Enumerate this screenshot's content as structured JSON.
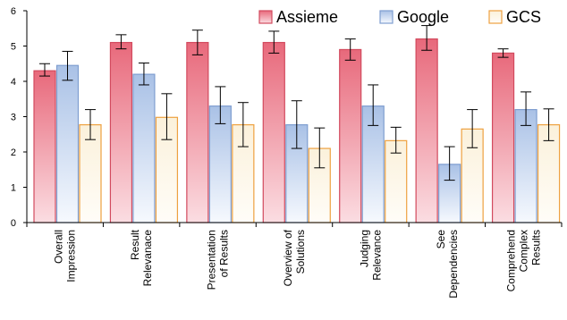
{
  "chart_data": {
    "type": "bar",
    "categories": [
      [
        "Overall",
        "Impression"
      ],
      [
        "Result",
        "Relevanace"
      ],
      [
        "Presentation",
        "of Results"
      ],
      [
        "Overview of",
        "Solutions"
      ],
      [
        "Judging",
        "Relevance"
      ],
      [
        "See",
        "Dependencies"
      ],
      [
        "Comprehend",
        "Complex",
        "Results"
      ]
    ],
    "series": [
      {
        "name": "Assieme",
        "values": [
          4.3,
          5.1,
          5.1,
          5.1,
          4.9,
          5.2,
          4.8
        ],
        "error_low": [
          4.15,
          4.92,
          4.75,
          4.8,
          4.6,
          4.88,
          4.68
        ],
        "error_high": [
          4.5,
          5.32,
          5.45,
          5.42,
          5.2,
          5.58,
          4.92
        ],
        "color_top": "#e8697b",
        "color_bottom": "#fbdde2",
        "stroke": "#d24a5e"
      },
      {
        "name": "Google",
        "values": [
          4.45,
          4.2,
          3.3,
          2.77,
          3.3,
          1.65,
          3.2
        ],
        "error_low": [
          4.03,
          3.9,
          2.8,
          2.1,
          2.75,
          1.2,
          2.75
        ],
        "error_high": [
          4.85,
          4.52,
          3.85,
          3.45,
          3.9,
          2.15,
          3.7
        ],
        "color_top": "#a9c1e6",
        "color_bottom": "#f6f9fe",
        "stroke": "#7f9ed0"
      },
      {
        "name": "GCS",
        "values": [
          2.77,
          2.98,
          2.77,
          2.1,
          2.32,
          2.65,
          2.77
        ],
        "error_low": [
          2.35,
          2.35,
          2.15,
          1.55,
          1.97,
          2.12,
          2.32
        ],
        "error_high": [
          3.2,
          3.65,
          3.4,
          2.68,
          2.7,
          3.2,
          3.22
        ],
        "color_top": "#fbf1db",
        "color_bottom": "#fffdf8",
        "stroke": "#eea140"
      }
    ],
    "ylim": [
      0,
      6
    ],
    "yticks": [
      0,
      1,
      2,
      3,
      4,
      5,
      6
    ],
    "legend_position": "top-right",
    "grid": false
  }
}
